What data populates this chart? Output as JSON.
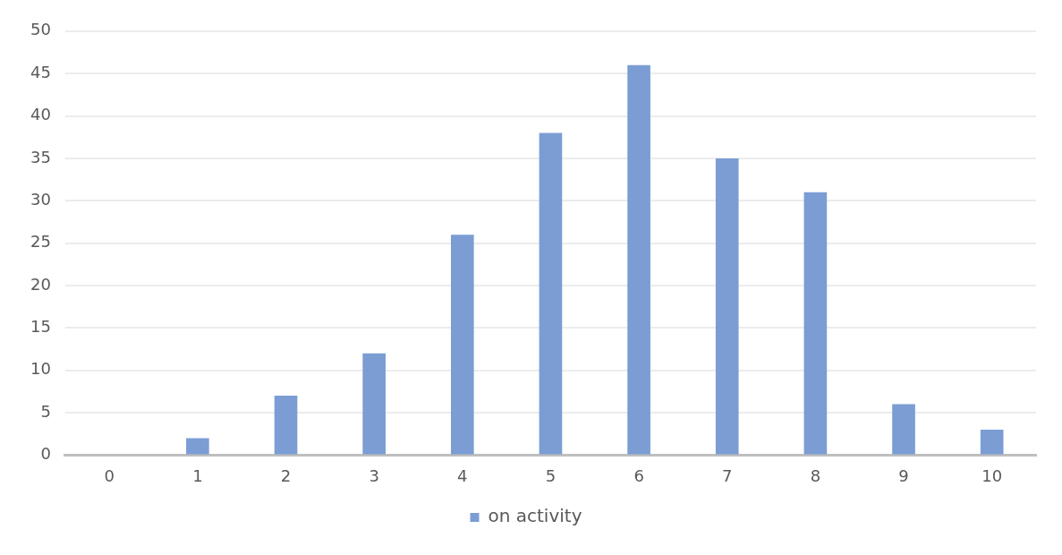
{
  "chart_data": {
    "type": "bar",
    "categories": [
      "0",
      "1",
      "2",
      "3",
      "4",
      "5",
      "6",
      "7",
      "8",
      "9",
      "10"
    ],
    "series": [
      {
        "name": "on activity",
        "color": "#7b9dd4",
        "values": [
          0,
          2,
          7,
          12,
          26,
          38,
          46,
          35,
          31,
          6,
          3
        ]
      }
    ],
    "ylim": [
      0,
      50
    ],
    "yticks": [
      0,
      5,
      10,
      15,
      20,
      25,
      30,
      35,
      40,
      45,
      50
    ],
    "grid": "y",
    "legend": "bottom"
  }
}
